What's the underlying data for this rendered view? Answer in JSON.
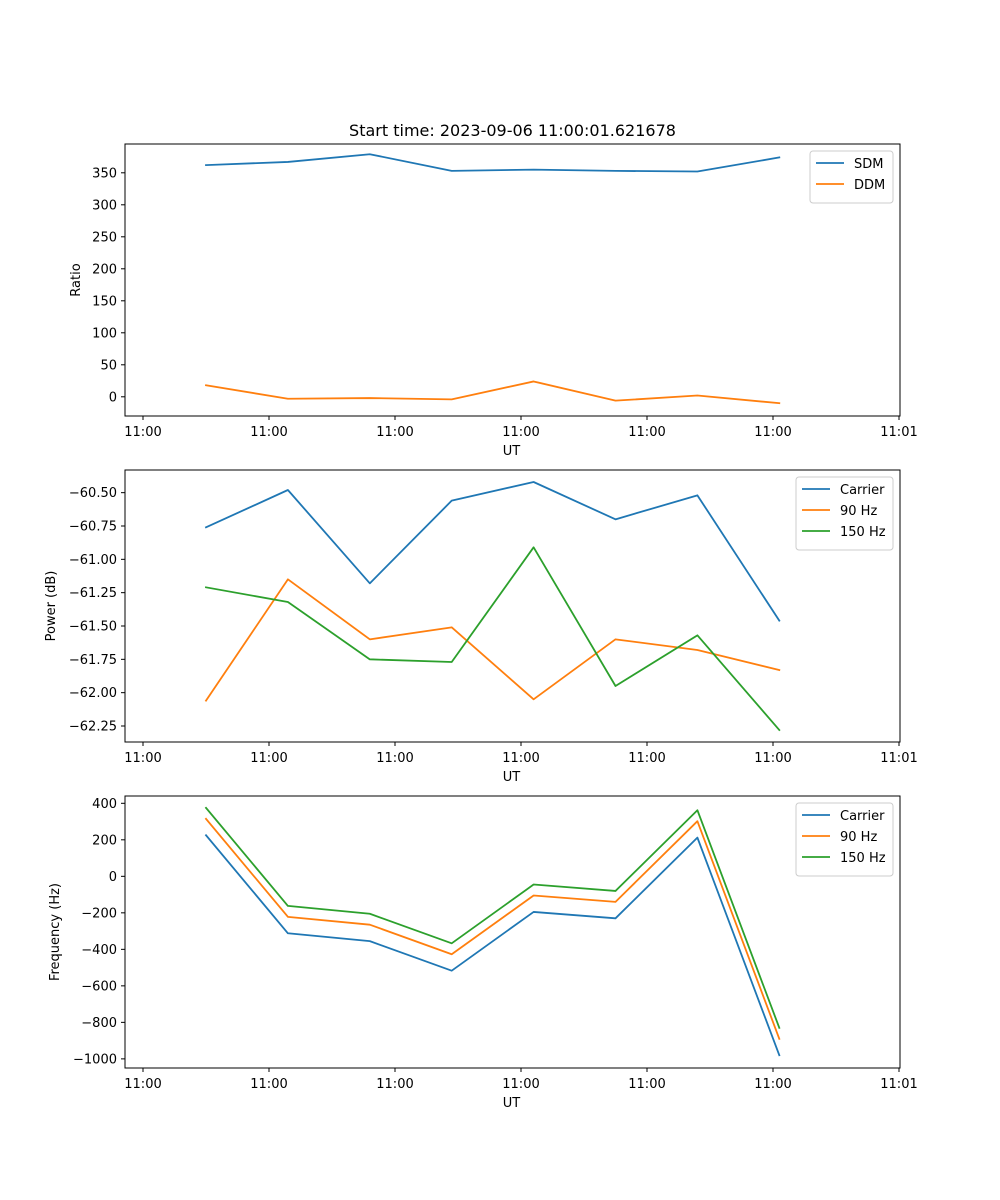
{
  "chart_data": [
    {
      "type": "line",
      "title": "Start time: 2023-09-06 11:00:01.621678",
      "xlabel": "UT",
      "ylabel": "Ratio",
      "xlim": [
        -0.6,
        5.3
      ],
      "ylim": [
        -30,
        395
      ],
      "xticks": [
        0,
        1,
        2,
        3,
        4,
        5
      ],
      "xtick_labels": [
        "11:00",
        "11:00",
        "11:00",
        "11:00",
        "11:00",
        "11:00",
        "11:01"
      ],
      "xtick_positions": [
        -0.5,
        0.5,
        1.5,
        2.5,
        3.5,
        4.5,
        5.5
      ],
      "ytick_values": [
        0,
        50,
        100,
        150,
        200,
        250,
        300,
        350
      ],
      "ytick_labels": [
        "0",
        "50",
        "100",
        "150",
        "200",
        "250",
        "300",
        "350"
      ],
      "legend_position": "top-right",
      "x": [
        0,
        0.65,
        1.3,
        1.95,
        2.6,
        3.25,
        3.9,
        4.55
      ],
      "series": [
        {
          "name": "SDM",
          "color": "#1f77b4",
          "values": [
            362,
            367,
            379,
            353,
            355,
            353,
            352,
            374
          ]
        },
        {
          "name": "DDM",
          "color": "#ff7f0e",
          "values": [
            18,
            -3,
            -2,
            -4,
            24,
            -6,
            2,
            -10
          ]
        }
      ]
    },
    {
      "type": "line",
      "title": "",
      "xlabel": "UT",
      "ylabel": "Power (dB)",
      "xlim": [
        -0.6,
        5.3
      ],
      "ylim": [
        -62.37,
        -60.33
      ],
      "xtick_labels": [
        "11:00",
        "11:00",
        "11:00",
        "11:00",
        "11:00",
        "11:00",
        "11:01"
      ],
      "xtick_positions": [
        -0.5,
        0.5,
        1.5,
        2.5,
        3.5,
        4.5,
        5.5
      ],
      "ytick_values": [
        -62.25,
        -62.0,
        -61.75,
        -61.5,
        -61.25,
        -61.0,
        -60.75,
        -60.5
      ],
      "ytick_labels": [
        "−62.25",
        "−62.00",
        "−61.75",
        "−61.50",
        "−61.25",
        "−61.00",
        "−60.75",
        "−60.50"
      ],
      "legend_position": "top-right",
      "x": [
        0,
        0.65,
        1.3,
        1.95,
        2.6,
        3.25,
        3.9,
        4.55
      ],
      "series": [
        {
          "name": "Carrier",
          "color": "#1f77b4",
          "values": [
            -60.76,
            -60.48,
            -61.18,
            -60.56,
            -60.42,
            -60.7,
            -60.52,
            -61.46
          ]
        },
        {
          "name": "90 Hz",
          "color": "#ff7f0e",
          "values": [
            -62.06,
            -61.15,
            -61.6,
            -61.51,
            -62.05,
            -61.6,
            -61.68,
            -61.83
          ]
        },
        {
          "name": "150 Hz",
          "color": "#2ca02c",
          "values": [
            -61.21,
            -61.32,
            -61.75,
            -61.77,
            -60.91,
            -61.95,
            -61.57,
            -62.28
          ]
        }
      ]
    },
    {
      "type": "line",
      "title": "",
      "xlabel": "UT",
      "ylabel": "Frequency (Hz)",
      "xlim": [
        -0.6,
        5.3
      ],
      "ylim": [
        -1050,
        440
      ],
      "xtick_labels": [
        "11:00",
        "11:00",
        "11:00",
        "11:00",
        "11:00",
        "11:00",
        "11:01"
      ],
      "xtick_positions": [
        -0.5,
        0.5,
        1.5,
        2.5,
        3.5,
        4.5,
        5.5
      ],
      "ytick_values": [
        -1000,
        -800,
        -600,
        -400,
        -200,
        0,
        200,
        400
      ],
      "ytick_labels": [
        "−1000",
        "−800",
        "−600",
        "−400",
        "−200",
        "0",
        "200",
        "400"
      ],
      "legend_position": "top-right",
      "x": [
        0,
        0.65,
        1.3,
        1.95,
        2.6,
        3.25,
        3.9,
        4.55
      ],
      "series": [
        {
          "name": "Carrier",
          "color": "#1f77b4",
          "values": [
            225,
            -312,
            -355,
            -517,
            -195,
            -230,
            212,
            -980
          ]
        },
        {
          "name": "90 Hz",
          "color": "#ff7f0e",
          "values": [
            315,
            -222,
            -265,
            -427,
            -105,
            -140,
            302,
            -890
          ]
        },
        {
          "name": "150 Hz",
          "color": "#2ca02c",
          "values": [
            375,
            -162,
            -205,
            -367,
            -45,
            -80,
            362,
            -830
          ]
        }
      ]
    }
  ]
}
